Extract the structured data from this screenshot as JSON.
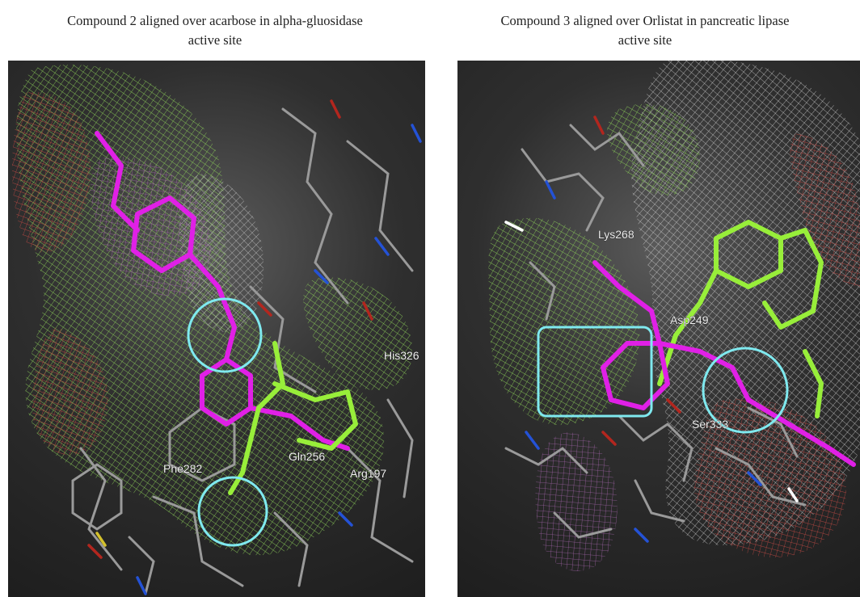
{
  "left_panel": {
    "caption": "Compound 2 aligned over acarbose in alpha-gluosidase\nactive site",
    "residue_labels": [
      "His326",
      "Phe282",
      "Gln256",
      "Arg197"
    ],
    "highlight_shapes": [
      "circle",
      "circle"
    ]
  },
  "right_panel": {
    "caption": "Compound 3 aligned over Orlistat in pancreatic lipase\nactive site",
    "residue_labels": [
      "Lys268",
      "Asp249",
      "Ser333"
    ],
    "highlight_shapes": [
      "rectangle",
      "circle"
    ]
  },
  "colors": {
    "ligand_magenta": "#e020e6",
    "ligand_green": "#98ee3a",
    "highlight_cyan": "#7fe9ef",
    "mesh_green": "#8fd45a",
    "mesh_red": "#c24a44",
    "mesh_white": "#e2e2e2",
    "atom_oxygen": "#b3261e",
    "atom_nitrogen": "#2452d6",
    "stick_grey": "#9a9a9a",
    "background_dark": "#2a2a2a"
  }
}
